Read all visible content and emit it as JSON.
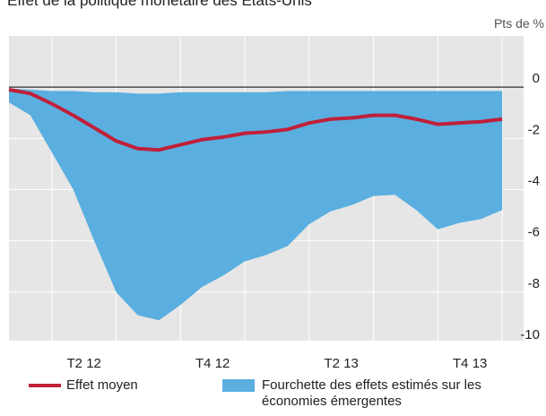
{
  "chart_data": {
    "type": "line-range",
    "title": "Effet de la politique monétaire des Etats-Unis",
    "y_label": "Pts de %",
    "x": [
      0,
      1,
      2,
      3,
      4,
      5,
      6,
      7,
      8,
      9,
      10,
      11,
      12,
      13,
      14,
      15,
      16,
      17,
      18,
      19,
      20,
      21,
      22,
      23
    ],
    "xlim": [
      0,
      24
    ],
    "xticks": [
      {
        "value": 3.5,
        "label": "T2 12"
      },
      {
        "value": 9.5,
        "label": "T4 12"
      },
      {
        "value": 15.5,
        "label": "T2 13"
      },
      {
        "value": 21.5,
        "label": "T4 13"
      }
    ],
    "xgrid": [
      2,
      5,
      8,
      11,
      14,
      17,
      20,
      23
    ],
    "ylim": [
      -10,
      2
    ],
    "yticks": [
      0,
      -2,
      -4,
      -6,
      -8,
      -10
    ],
    "grid": true,
    "series": [
      {
        "name": "Effet moyen",
        "color": "#c0203a",
        "values": [
          -0.1,
          -0.25,
          -0.65,
          -1.1,
          -1.6,
          -2.1,
          -2.4,
          -2.45,
          -2.25,
          -2.05,
          -1.95,
          -1.8,
          -1.75,
          -1.65,
          -1.4,
          -1.25,
          -1.2,
          -1.1,
          -1.1,
          -1.25,
          -1.45,
          -1.4,
          -1.35,
          -1.25
        ]
      },
      {
        "name": "Fourchette des effets estimés sur les économies émergentes",
        "color": "#5aafe0",
        "high": [
          -0.05,
          -0.1,
          -0.15,
          -0.15,
          -0.2,
          -0.2,
          -0.25,
          -0.25,
          -0.2,
          -0.2,
          -0.2,
          -0.2,
          -0.2,
          -0.15,
          -0.15,
          -0.15,
          -0.15,
          -0.15,
          -0.15,
          -0.15,
          -0.15,
          -0.15,
          -0.15,
          -0.15
        ],
        "low": [
          -0.6,
          -1.1,
          -2.55,
          -4.0,
          -6.05,
          -8.0,
          -8.9,
          -9.1,
          -8.5,
          -7.8,
          -7.35,
          -6.8,
          -6.55,
          -6.2,
          -5.35,
          -4.85,
          -4.6,
          -4.25,
          -4.2,
          -4.8,
          -5.55,
          -5.3,
          -5.15,
          -4.8
        ]
      }
    ]
  }
}
